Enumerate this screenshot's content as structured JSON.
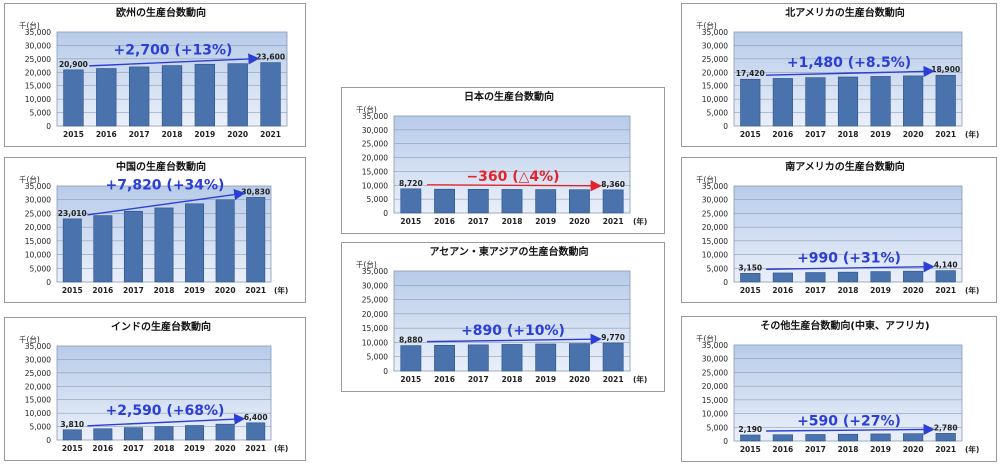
{
  "colors": {
    "plot_bg_top": "#b7cbe9",
    "plot_bg_bottom": "#eaf0fa",
    "bar": "#4a73ae",
    "bar_edge": "#2c4f86",
    "arrow_blue": "#2b3fd6",
    "arrow_red": "#e0262b",
    "gridline": "#7f8fa8"
  },
  "chart_data": [
    {
      "type": "bar",
      "title": "欧州の生産台数動向",
      "unit": "千(台)",
      "x_unit": "",
      "categories": [
        "2015",
        "2016",
        "2017",
        "2018",
        "2019",
        "2020",
        "2021"
      ],
      "values": [
        20900,
        21400,
        22000,
        22500,
        23000,
        23200,
        23600
      ],
      "data_labels": [
        {
          "index": 0,
          "text": "20,900"
        },
        {
          "index": 6,
          "text": "23,600"
        }
      ],
      "annotation": "+2,700 (+13%)",
      "annotation_color": "blue",
      "ylim": [
        0,
        35000
      ],
      "ytick_labels": [
        "35,000",
        "30,000",
        "25,000",
        "20,000",
        "15,000",
        "10,000",
        "5,000",
        "0"
      ],
      "grid": true
    },
    {
      "type": "bar",
      "title": "中国の生産台数動向",
      "unit": "千(台)",
      "x_unit": "(年)",
      "categories": [
        "2015",
        "2016",
        "2017",
        "2018",
        "2019",
        "2020",
        "2021"
      ],
      "values": [
        23010,
        24200,
        25800,
        27000,
        28500,
        30000,
        30830
      ],
      "data_labels": [
        {
          "index": 0,
          "text": "23,010"
        },
        {
          "index": 6,
          "text": "30,830"
        }
      ],
      "annotation": "+7,820 (+34%)",
      "annotation_color": "blue",
      "ylim": [
        0,
        35000
      ],
      "ytick_labels": [
        "35,000",
        "30,000",
        "25,000",
        "20,000",
        "15,000",
        "10,000",
        "5,000",
        "0"
      ],
      "grid": true
    },
    {
      "type": "bar",
      "title": "インドの生産台数動向",
      "unit": "千(台)",
      "x_unit": "(年)",
      "categories": [
        "2015",
        "2016",
        "2017",
        "2018",
        "2019",
        "2020",
        "2021"
      ],
      "values": [
        3810,
        4200,
        4600,
        5000,
        5400,
        5900,
        6400
      ],
      "data_labels": [
        {
          "index": 0,
          "text": "3,810"
        },
        {
          "index": 6,
          "text": "6,400"
        }
      ],
      "annotation": "+2,590 (+68%)",
      "annotation_color": "blue",
      "ylim": [
        0,
        35000
      ],
      "ytick_labels": [
        "35,000",
        "30,000",
        "25,000",
        "20,000",
        "15,000",
        "10,000",
        "5,000",
        "0"
      ],
      "grid": true
    },
    {
      "type": "bar",
      "title": "日本の生産台数動向",
      "unit": "千(台)",
      "x_unit": "(年)",
      "categories": [
        "2015",
        "2016",
        "2017",
        "2018",
        "2019",
        "2020",
        "2021"
      ],
      "values": [
        8720,
        8600,
        8550,
        8500,
        8450,
        8400,
        8360
      ],
      "data_labels": [
        {
          "index": 0,
          "text": "8,720"
        },
        {
          "index": 6,
          "text": "8,360"
        }
      ],
      "annotation": "−360 (△4%)",
      "annotation_color": "red",
      "ylim": [
        0,
        35000
      ],
      "ytick_labels": [
        "35,000",
        "30,000",
        "25,000",
        "20,000",
        "15,000",
        "10,000",
        "5,000",
        "0"
      ],
      "grid": true
    },
    {
      "type": "bar",
      "title": "アセアン・東アジアの生産台数動向",
      "unit": "千(台)",
      "x_unit": "(年)",
      "categories": [
        "2015",
        "2016",
        "2017",
        "2018",
        "2019",
        "2020",
        "2021"
      ],
      "values": [
        8880,
        9000,
        9150,
        9300,
        9450,
        9600,
        9770
      ],
      "data_labels": [
        {
          "index": 0,
          "text": "8,880"
        },
        {
          "index": 6,
          "text": "9,770"
        }
      ],
      "annotation": "+890 (+10%)",
      "annotation_color": "blue",
      "ylim": [
        0,
        35000
      ],
      "ytick_labels": [
        "35,000",
        "30,000",
        "25,000",
        "20,000",
        "15,000",
        "10,000",
        "5,000",
        "0"
      ],
      "grid": true
    },
    {
      "type": "bar",
      "title": "北アメリカの生産台数動向",
      "unit": "千(台)",
      "x_unit": "(年)",
      "categories": [
        "2015",
        "2016",
        "2017",
        "2018",
        "2019",
        "2020",
        "2021"
      ],
      "values": [
        17420,
        17700,
        18000,
        18250,
        18450,
        18650,
        18900
      ],
      "data_labels": [
        {
          "index": 0,
          "text": "17,420"
        },
        {
          "index": 6,
          "text": "18,900"
        }
      ],
      "annotation": "+1,480 (+8.5%)",
      "annotation_color": "blue",
      "ylim": [
        0,
        35000
      ],
      "ytick_labels": [
        "35,000",
        "30,000",
        "25,000",
        "20,000",
        "15,000",
        "10,000",
        "5,000",
        "0"
      ],
      "grid": true
    },
    {
      "type": "bar",
      "title": "南アメリカの生産台数動向",
      "unit": "千(台)",
      "x_unit": "(年)",
      "categories": [
        "2015",
        "2016",
        "2017",
        "2018",
        "2019",
        "2020",
        "2021"
      ],
      "values": [
        3150,
        3300,
        3450,
        3600,
        3800,
        3950,
        4140
      ],
      "data_labels": [
        {
          "index": 0,
          "text": "3,150"
        },
        {
          "index": 6,
          "text": "4,140"
        }
      ],
      "annotation": "+990 (+31%)",
      "annotation_color": "blue",
      "ylim": [
        0,
        35000
      ],
      "ytick_labels": [
        "35,000",
        "30,000",
        "25,000",
        "20,000",
        "15,000",
        "10,000",
        "5,000",
        "0"
      ],
      "grid": true
    },
    {
      "type": "bar",
      "title": "その他生産台数動向(中東、アフリカ)",
      "unit": "千(台)",
      "x_unit": "(年)",
      "categories": [
        "2015",
        "2016",
        "2017",
        "2018",
        "2019",
        "2020",
        "2021"
      ],
      "values": [
        2190,
        2280,
        2380,
        2480,
        2580,
        2680,
        2780
      ],
      "data_labels": [
        {
          "index": 0,
          "text": "2,190"
        },
        {
          "index": 6,
          "text": "2,780"
        }
      ],
      "annotation": "+590 (+27%)",
      "annotation_color": "blue",
      "ylim": [
        0,
        35000
      ],
      "ytick_labels": [
        "35,000",
        "30,000",
        "25,000",
        "20,000",
        "15,000",
        "10,000",
        "5,000",
        "0"
      ],
      "grid": true
    }
  ]
}
